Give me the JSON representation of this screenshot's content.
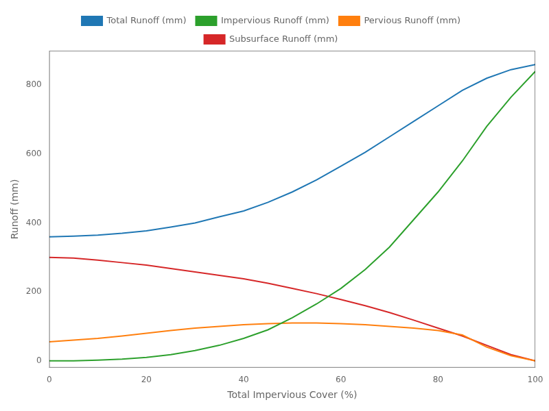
{
  "chart_data": {
    "type": "line",
    "xlabel": "Total Impervious Cover (%)",
    "ylabel": "Runoff (mm)",
    "x": [
      0,
      5,
      10,
      15,
      20,
      25,
      30,
      35,
      40,
      45,
      50,
      55,
      60,
      65,
      70,
      75,
      80,
      85,
      90,
      95,
      100
    ],
    "series": [
      {
        "name": "Total Runoff (mm)",
        "color": "#1f77b4",
        "values": [
          360,
          362,
          365,
          370,
          377,
          388,
          400,
          418,
          435,
          460,
          490,
          525,
          565,
          605,
          650,
          695,
          740,
          785,
          820,
          845,
          860
        ]
      },
      {
        "name": "Impervious Runoff (mm)",
        "color": "#2ca02c",
        "values": [
          0,
          0,
          2,
          5,
          10,
          18,
          30,
          45,
          65,
          90,
          125,
          165,
          210,
          265,
          330,
          410,
          490,
          580,
          680,
          765,
          840
        ]
      },
      {
        "name": "Pervious Runoff (mm)",
        "color": "#ff7f0e",
        "values": [
          55,
          60,
          65,
          72,
          80,
          88,
          95,
          100,
          105,
          108,
          110,
          110,
          108,
          105,
          100,
          95,
          88,
          75,
          40,
          15,
          0
        ]
      },
      {
        "name": "Subsurface Runoff (mm)",
        "color": "#d62728",
        "values": [
          300,
          298,
          292,
          285,
          278,
          268,
          258,
          248,
          238,
          225,
          210,
          195,
          178,
          160,
          140,
          118,
          95,
          72,
          45,
          18,
          0
        ]
      }
    ],
    "xlim": [
      0,
      100
    ],
    "ylim": [
      -20,
      900
    ],
    "xticks": [
      0,
      20,
      40,
      60,
      80,
      100
    ],
    "yticks": [
      0,
      200,
      400,
      600,
      800
    ],
    "grid": false,
    "legend": "top"
  }
}
